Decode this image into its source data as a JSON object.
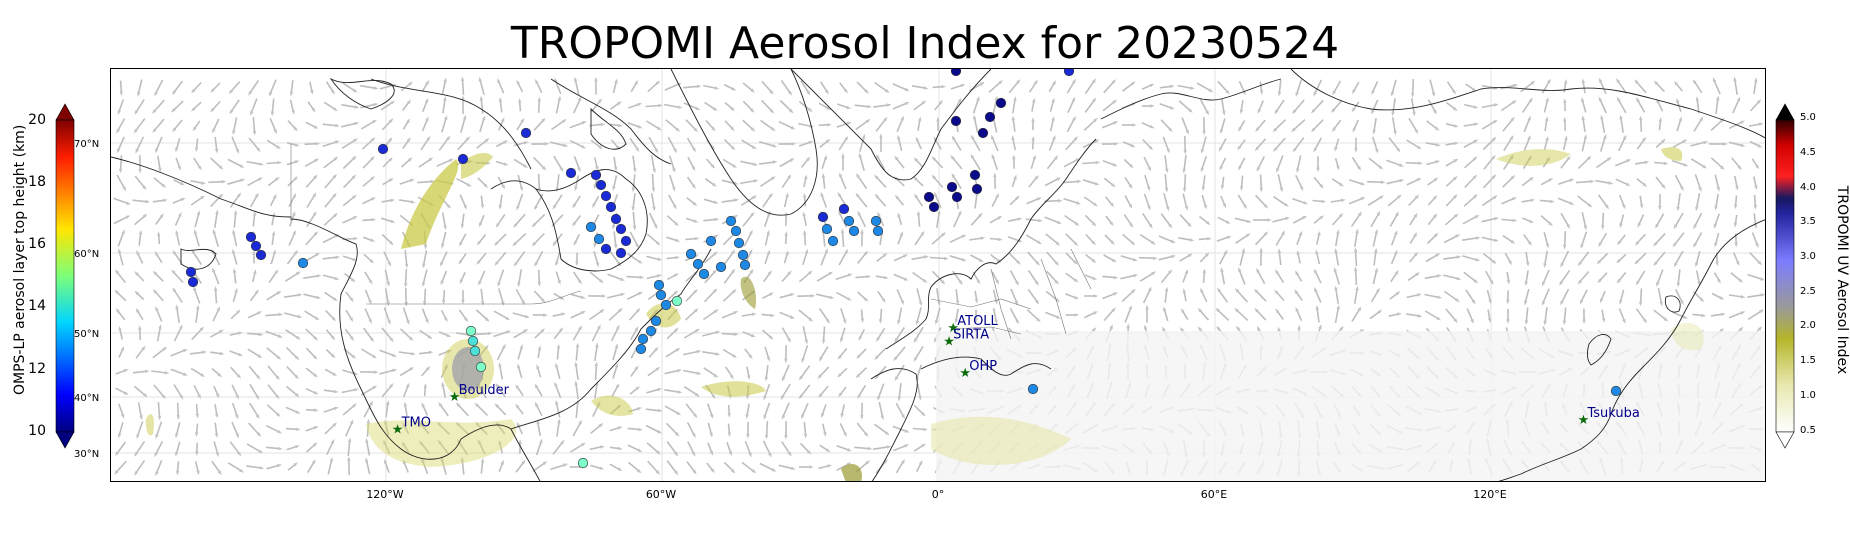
{
  "title": "TROPOMI Aerosol Index for 20230524",
  "x_ticks": [
    "120°W",
    "60°W",
    "0°",
    "60°E",
    "120°E"
  ],
  "left_colorbar": {
    "label": "OMPS-LP aerosol layer top height (km)",
    "ticks": [
      "20",
      "18",
      "16",
      "14",
      "12",
      "10"
    ],
    "lat_labels": [
      "70°N",
      "60°N",
      "50°N",
      "40°N",
      "30°N"
    ]
  },
  "right_colorbar": {
    "label": "TROPOMI UV Aerosol Index",
    "ticks": [
      "5.0",
      "4.5",
      "4.0",
      "3.5",
      "3.0",
      "2.5",
      "2.0",
      "1.5",
      "1.0",
      "0.5"
    ]
  },
  "stations": [
    {
      "name": "ATOLL",
      "lon": 3.1,
      "lat": 50.6
    },
    {
      "name": "SIRTA",
      "lon": 2.2,
      "lat": 48.7
    },
    {
      "name": "OHP",
      "lon": 5.7,
      "lat": 43.9
    },
    {
      "name": "Boulder",
      "lon": -105.3,
      "lat": 40.0
    },
    {
      "name": "TMO",
      "lon": -117.7,
      "lat": 34.4
    },
    {
      "name": "Tsukuba",
      "lon": 140.1,
      "lat": 36.1
    }
  ],
  "colors": {
    "station": "#0b6b0b",
    "station_label": "#00008b",
    "coast": "#222222",
    "border": "#777777",
    "wind_arrows": "#bdbdbd",
    "aerosol_low": "#c9c947",
    "aerosol_mid": "#8d8d1f"
  }
}
